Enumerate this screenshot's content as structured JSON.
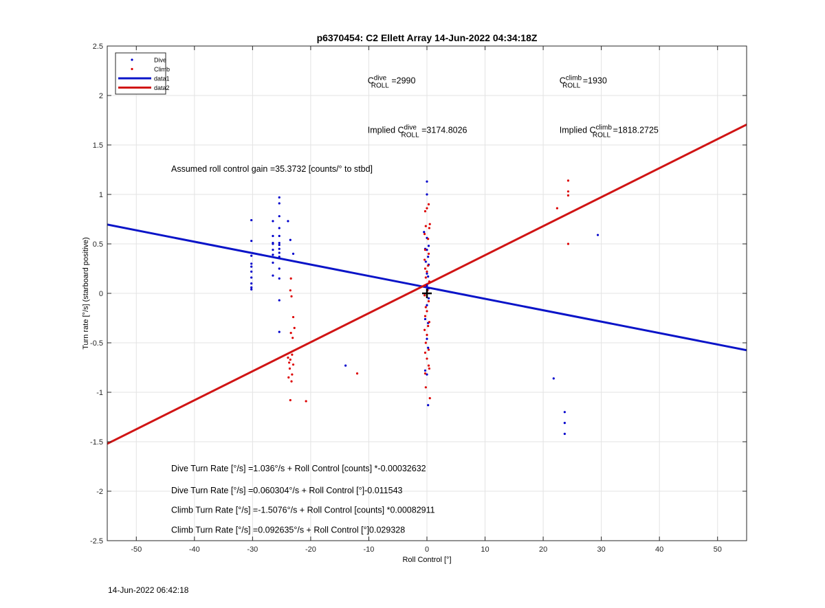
{
  "figure": {
    "timestamp": "14-Jun-2022 06:42:18"
  },
  "chart_data": {
    "type": "scatter",
    "title": "p6370454: C2 Ellett Array 14-Jun-2022 04:34:18Z",
    "xlabel": "Roll Control [°]",
    "ylabel": "Turn rate [°/s] (starboard positive)",
    "xlim": [
      -55,
      55
    ],
    "ylim": [
      -2.5,
      2.5
    ],
    "xticks": [
      -50,
      -40,
      -30,
      -20,
      -10,
      0,
      10,
      20,
      30,
      40,
      50
    ],
    "yticks": [
      -2.5,
      -2,
      -1.5,
      -1,
      -0.5,
      0,
      0.5,
      1,
      1.5,
      2,
      2.5
    ],
    "grid": true,
    "legend_position": "top-left",
    "legend": [
      {
        "label": "Dive",
        "kind": "marker",
        "color": "#0000cc"
      },
      {
        "label": "Climb",
        "kind": "marker",
        "color": "#dd0000"
      },
      {
        "label": "data1",
        "kind": "line",
        "color": "#0a14c8"
      },
      {
        "label": "data2",
        "kind": "line",
        "color": "#d01414"
      }
    ],
    "series": [
      {
        "name": "Dive",
        "color": "#0000cc",
        "points": [
          [
            -30.2,
            0.74
          ],
          [
            -30.2,
            0.53
          ],
          [
            -30.2,
            0.38
          ],
          [
            -30.2,
            0.3
          ],
          [
            -30.2,
            0.27
          ],
          [
            -30.2,
            0.22
          ],
          [
            -30.2,
            0.16
          ],
          [
            -30.2,
            0.1
          ],
          [
            -30.2,
            0.06
          ],
          [
            -30.2,
            0.04
          ],
          [
            -26.5,
            0.73
          ],
          [
            -26.5,
            0.58
          ],
          [
            -26.5,
            0.51
          ],
          [
            -26.5,
            0.5
          ],
          [
            -26.5,
            0.44
          ],
          [
            -26.5,
            0.39
          ],
          [
            -26.5,
            0.31
          ],
          [
            -26.5,
            0.18
          ],
          [
            -25.4,
            0.97
          ],
          [
            -25.4,
            0.91
          ],
          [
            -25.4,
            0.78
          ],
          [
            -25.4,
            0.66
          ],
          [
            -25.4,
            0.58
          ],
          [
            -25.4,
            0.51
          ],
          [
            -25.4,
            0.49
          ],
          [
            -25.4,
            0.45
          ],
          [
            -25.4,
            0.41
          ],
          [
            -25.4,
            0.37
          ],
          [
            -25.4,
            0.25
          ],
          [
            -25.4,
            0.15
          ],
          [
            -25.4,
            -0.07
          ],
          [
            -25.4,
            -0.39
          ],
          [
            -23.9,
            0.73
          ],
          [
            -23.5,
            0.54
          ],
          [
            -23.0,
            0.4
          ],
          [
            -14.0,
            -0.73
          ],
          [
            0.0,
            1.13
          ],
          [
            0.0,
            1.0
          ],
          [
            -0.5,
            0.62
          ],
          [
            0.0,
            0.56
          ],
          [
            0.3,
            0.48
          ],
          [
            -0.3,
            0.45
          ],
          [
            0.0,
            0.44
          ],
          [
            0.2,
            0.37
          ],
          [
            -0.2,
            0.32
          ],
          [
            0.3,
            0.29
          ],
          [
            0.0,
            0.2
          ],
          [
            0.2,
            0.17
          ],
          [
            0.0,
            0.08
          ],
          [
            0.3,
            0.05
          ],
          [
            0.0,
            0.0
          ],
          [
            0.3,
            -0.05
          ],
          [
            0.0,
            -0.12
          ],
          [
            -0.3,
            -0.26
          ],
          [
            0.2,
            -0.3
          ],
          [
            0.0,
            -0.46
          ],
          [
            0.2,
            -0.55
          ],
          [
            -0.3,
            -0.78
          ],
          [
            0.0,
            -0.82
          ],
          [
            0.2,
            -1.13
          ],
          [
            21.8,
            -0.86
          ],
          [
            23.7,
            -1.2
          ],
          [
            23.7,
            -1.31
          ],
          [
            23.7,
            -1.42
          ],
          [
            29.4,
            0.59
          ]
        ]
      },
      {
        "name": "Climb",
        "color": "#dd0000",
        "points": [
          [
            -23.4,
            0.15
          ],
          [
            -23.5,
            0.03
          ],
          [
            -23.3,
            -0.03
          ],
          [
            -23.0,
            -0.24
          ],
          [
            -22.8,
            -0.35
          ],
          [
            -23.4,
            -0.4
          ],
          [
            -23.1,
            -0.45
          ],
          [
            -23.9,
            -0.65
          ],
          [
            -23.2,
            -0.62
          ],
          [
            -23.5,
            -0.67
          ],
          [
            -23.7,
            -0.7
          ],
          [
            -23.0,
            -0.72
          ],
          [
            -23.6,
            -0.76
          ],
          [
            -23.2,
            -0.82
          ],
          [
            -23.8,
            -0.85
          ],
          [
            -23.3,
            -0.89
          ],
          [
            -23.5,
            -1.08
          ],
          [
            -20.8,
            -1.09
          ],
          [
            -12.0,
            -0.81
          ],
          [
            0.3,
            0.9
          ],
          [
            0.0,
            0.86
          ],
          [
            -0.3,
            0.83
          ],
          [
            0.5,
            0.7
          ],
          [
            -0.2,
            0.68
          ],
          [
            0.4,
            0.66
          ],
          [
            -0.4,
            0.6
          ],
          [
            0.2,
            0.55
          ],
          [
            -0.3,
            0.44
          ],
          [
            0.3,
            0.4
          ],
          [
            -0.4,
            0.34
          ],
          [
            0.2,
            0.28
          ],
          [
            -0.3,
            0.25
          ],
          [
            0.0,
            0.22
          ],
          [
            -0.2,
            0.16
          ],
          [
            0.4,
            0.12
          ],
          [
            -0.3,
            0.08
          ],
          [
            0.1,
            0.03
          ],
          [
            -0.4,
            -0.02
          ],
          [
            0.3,
            -0.08
          ],
          [
            -0.2,
            -0.14
          ],
          [
            0.0,
            -0.18
          ],
          [
            -0.3,
            -0.23
          ],
          [
            0.4,
            -0.29
          ],
          [
            0.2,
            -0.33
          ],
          [
            -0.4,
            -0.37
          ],
          [
            0.0,
            -0.42
          ],
          [
            -0.2,
            -0.5
          ],
          [
            0.3,
            -0.57
          ],
          [
            -0.3,
            -0.6
          ],
          [
            0.0,
            -0.66
          ],
          [
            0.3,
            -0.73
          ],
          [
            -0.3,
            -0.81
          ],
          [
            0.4,
            -0.76
          ],
          [
            -0.2,
            -0.95
          ],
          [
            0.5,
            -1.06
          ],
          [
            22.4,
            0.86
          ],
          [
            24.3,
            1.14
          ],
          [
            24.3,
            1.03
          ],
          [
            24.3,
            0.99
          ],
          [
            24.3,
            0.5
          ]
        ]
      },
      {
        "name": "data1",
        "kind": "fit-line",
        "color": "#0a14c8",
        "intercept": 0.060304,
        "slope": -0.011543
      },
      {
        "name": "data2",
        "kind": "fit-line",
        "color": "#d01414",
        "intercept": 0.092635,
        "slope": 0.029328
      }
    ],
    "annotations": [
      {
        "id": "c_roll_dive",
        "x": -10.2,
        "y": 2.12,
        "prefix": "C",
        "sup": "dive",
        "sub": "ROLL",
        "suffix": " =2990"
      },
      {
        "id": "c_roll_climb",
        "x": 22.8,
        "y": 2.12,
        "prefix": "C",
        "sup": "climb",
        "sub": "ROLL",
        "suffix": " =1930"
      },
      {
        "id": "implied_dive",
        "x": -10.2,
        "y": 1.62,
        "prefix": "Implied C",
        "sup": "dive",
        "sub": "ROLL",
        "suffix": " =3174.8026"
      },
      {
        "id": "implied_climb",
        "x": 22.8,
        "y": 1.62,
        "prefix": "Implied C",
        "sup": "climb",
        "sub": "ROLL",
        "suffix": " =1818.2725"
      },
      {
        "id": "gain",
        "x": -44.0,
        "y": 1.23,
        "text": "Assumed roll control gain =35.3732 [counts/° to stbd]"
      },
      {
        "id": "dive_counts",
        "x": -44.0,
        "y": -1.8,
        "text": "Dive Turn Rate [°/s] =1.036°/s + Roll Control [counts] *-0.00032632"
      },
      {
        "id": "dive_deg",
        "x": -44.0,
        "y": -2.02,
        "text": "Dive Turn Rate [°/s] =0.060304°/s + Roll Control [°]-0.011543"
      },
      {
        "id": "climb_counts",
        "x": -44.0,
        "y": -2.22,
        "text": "Climb Turn Rate [°/s] =-1.5076°/s + Roll Control [counts] *0.00082911"
      },
      {
        "id": "climb_deg",
        "x": -44.0,
        "y": -2.42,
        "text": "Climb Turn Rate [°/s] =0.092635°/s + Roll Control [°]0.029328"
      }
    ],
    "origin_marker": {
      "x": 0,
      "y": 0,
      "symbol": "+"
    }
  }
}
